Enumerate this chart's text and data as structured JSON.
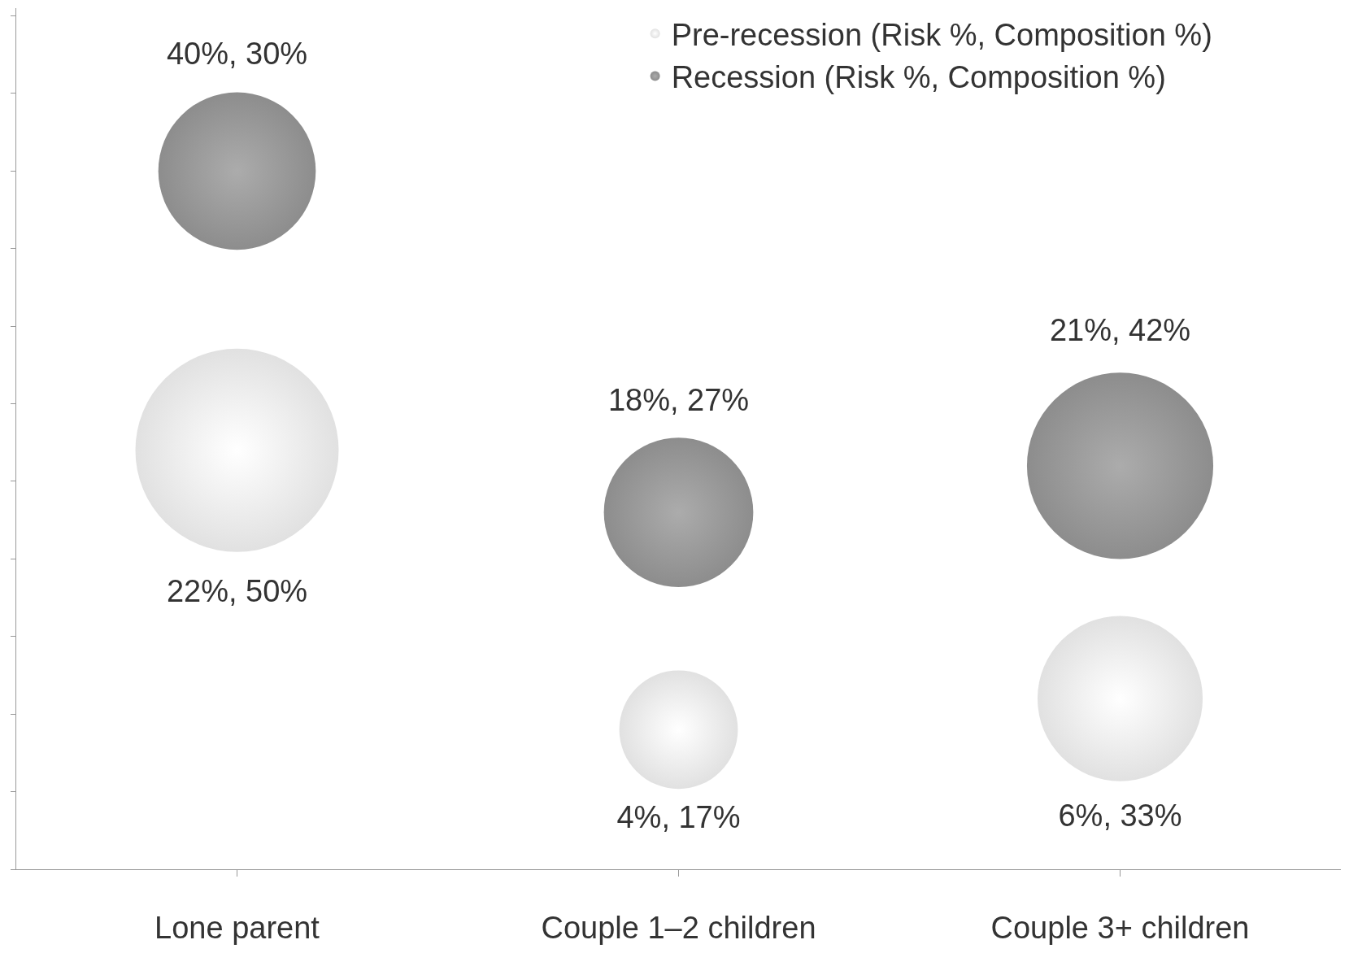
{
  "chart_data": {
    "type": "bubble",
    "categories": [
      "Lone parent",
      "Couple 1–2 children",
      "Couple 3+ children"
    ],
    "series": [
      {
        "name": "Pre-recession (Risk %, Composition %)",
        "color": "#d4d4d4",
        "values": [
          22,
          4,
          6
        ],
        "sizes": [
          1,
          0.34,
          0.66
        ],
        "value_labels": [
          "22%, 50%",
          "4%, 17%",
          "6%, 33%"
        ]
      },
      {
        "name": "Recession (Risk %, Composition %)",
        "color": "#5c5c5c",
        "values": [
          40,
          18,
          21
        ],
        "sizes": [
          0.6,
          0.54,
          0.84
        ],
        "value_labels": [
          "40%, 30%",
          "18%, 27%",
          "21%, 42%"
        ]
      }
    ],
    "ylim": [
      -5,
      50.5
    ],
    "yticks": [
      {
        "value": -5,
        "label": null
      },
      {
        "value": 0,
        "label": null
      },
      {
        "value": 5,
        "label": null
      },
      {
        "value": 10,
        "label": null
      },
      {
        "value": 15,
        "label": null
      },
      {
        "value": 20,
        "label": null
      },
      {
        "value": 25,
        "label": null
      },
      {
        "value": 30,
        "label": null
      },
      {
        "value": 35,
        "label": null
      },
      {
        "value": 40,
        "label": null
      },
      {
        "value": 45,
        "label": null
      },
      {
        "value": 50,
        "label": null
      }
    ],
    "legend": "top right"
  }
}
